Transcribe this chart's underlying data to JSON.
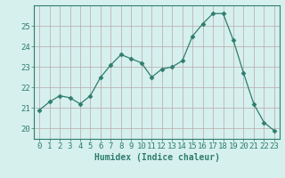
{
  "x": [
    0,
    1,
    2,
    3,
    4,
    5,
    6,
    7,
    8,
    9,
    10,
    11,
    12,
    13,
    14,
    15,
    16,
    17,
    18,
    19,
    20,
    21,
    22,
    23
  ],
  "y": [
    20.9,
    21.3,
    21.6,
    21.5,
    21.2,
    21.6,
    22.5,
    23.1,
    23.6,
    23.4,
    23.2,
    22.5,
    22.9,
    23.0,
    23.3,
    24.5,
    25.1,
    25.6,
    25.6,
    24.3,
    22.7,
    21.2,
    20.3,
    19.9
  ],
  "line_color": "#2e7d6e",
  "marker": "D",
  "markersize": 2.5,
  "bg_color": "#d6f0ee",
  "grid_color": "#b8a8a8",
  "xlabel": "Humidex (Indice chaleur)",
  "xlim": [
    -0.5,
    23.5
  ],
  "ylim": [
    19.5,
    26.0
  ],
  "yticks": [
    20,
    21,
    22,
    23,
    24,
    25
  ],
  "xticks": [
    0,
    1,
    2,
    3,
    4,
    5,
    6,
    7,
    8,
    9,
    10,
    11,
    12,
    13,
    14,
    15,
    16,
    17,
    18,
    19,
    20,
    21,
    22,
    23
  ],
  "xlabel_fontsize": 7,
  "tick_fontsize": 6.5
}
